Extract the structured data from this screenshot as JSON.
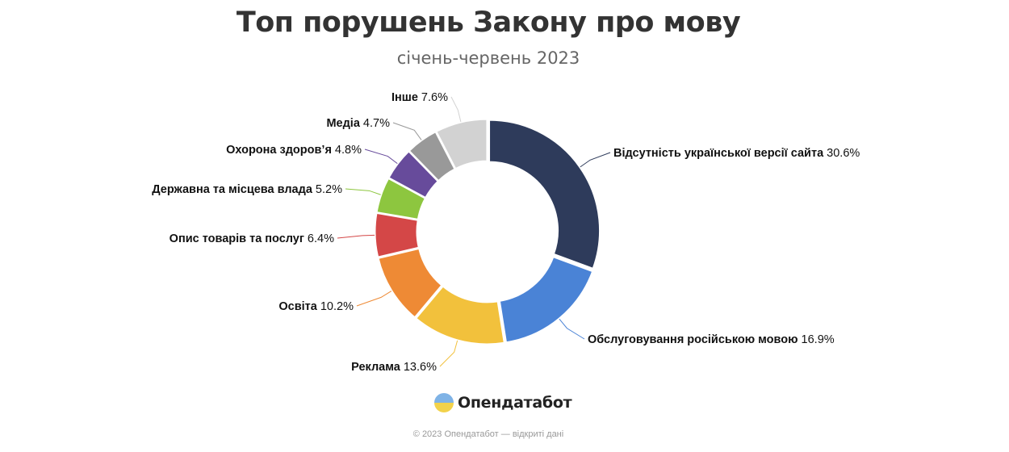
{
  "header": {
    "title": "Топ порушень Закону про мову",
    "subtitle": "січень-червень 2023"
  },
  "brand": {
    "name": "Опендатабот"
  },
  "footer": {
    "credit": "© 2023 Опендатабот — відкриті дані"
  },
  "chart_data": {
    "type": "pie",
    "variant": "donut",
    "title": "Топ порушень Закону про мову",
    "subtitle": "січень-червень 2023",
    "legend": "none",
    "value_suffix": "%",
    "slices": [
      {
        "label": "Відсутність української версії сайта",
        "value": 30.6,
        "color": "#2e3b5b"
      },
      {
        "label": "Обслуговування російською мовою",
        "value": 16.9,
        "color": "#4a83d6"
      },
      {
        "label": "Реклама",
        "value": 13.6,
        "color": "#f2c13c"
      },
      {
        "label": "Освіта",
        "value": 10.2,
        "color": "#ee8a35"
      },
      {
        "label": "Опис товарів та послуг",
        "value": 6.4,
        "color": "#d44747"
      },
      {
        "label": "Державна та місцева влада",
        "value": 5.2,
        "color": "#8dc63f"
      },
      {
        "label": "Охорона здоров’я",
        "value": 4.8,
        "color": "#674b9b"
      },
      {
        "label": "Медіа",
        "value": 4.7,
        "color": "#999999"
      },
      {
        "label": "Інше",
        "value": 7.6,
        "color": "#d2d2d2"
      }
    ]
  }
}
